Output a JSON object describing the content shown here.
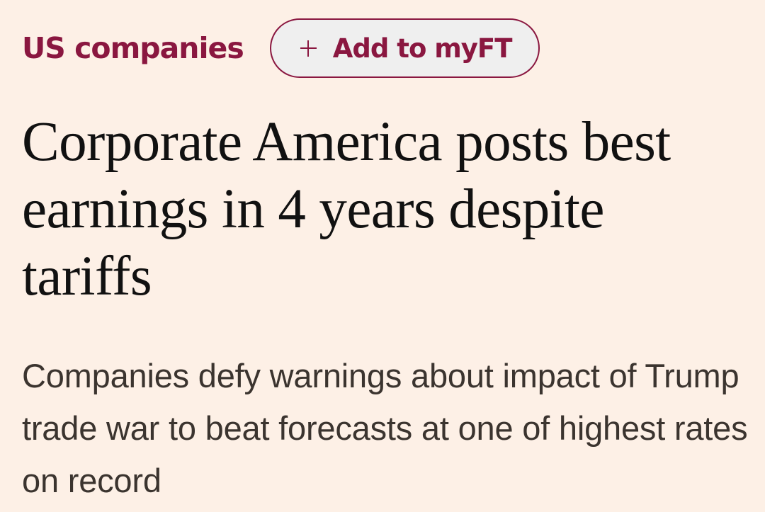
{
  "article": {
    "topic": "US companies",
    "follow_button": {
      "icon": "plus-icon",
      "label": "Add to myFT"
    },
    "headline": "Corporate America posts best earnings in 4 years despite tariffs",
    "standfirst": "Companies defy warnings about impact of Trump trade war to beat forecasts at one of highest rates on record"
  },
  "colors": {
    "background": "#fdf0e6",
    "accent": "#8a1740",
    "headline": "#111111",
    "standfirst": "#3b342f"
  }
}
